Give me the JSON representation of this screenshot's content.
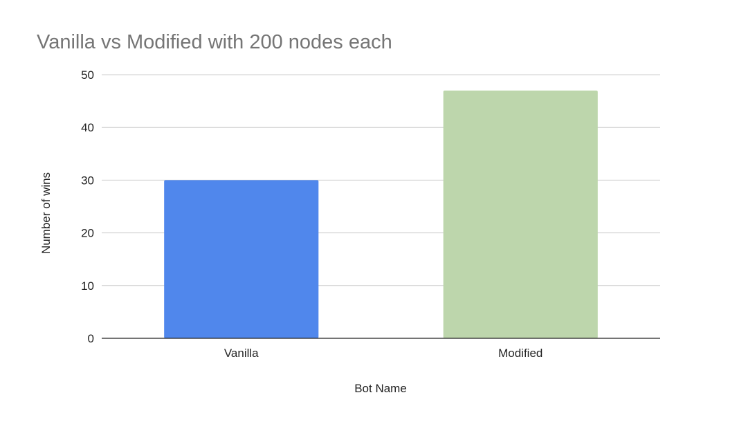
{
  "chart_data": {
    "type": "bar",
    "title": "Vanilla vs Modified with 200 nodes each",
    "xlabel": "Bot Name",
    "ylabel": "Number of wins",
    "categories": [
      "Vanilla",
      "Modified"
    ],
    "series": [
      {
        "values": [
          30,
          47
        ]
      }
    ],
    "bar_colors": [
      "#5087ec",
      "#bdd6ac"
    ],
    "ylim": [
      0,
      50
    ],
    "yticks": [
      0,
      10,
      20,
      30,
      40,
      50
    ],
    "grid": true,
    "legend": "none"
  }
}
